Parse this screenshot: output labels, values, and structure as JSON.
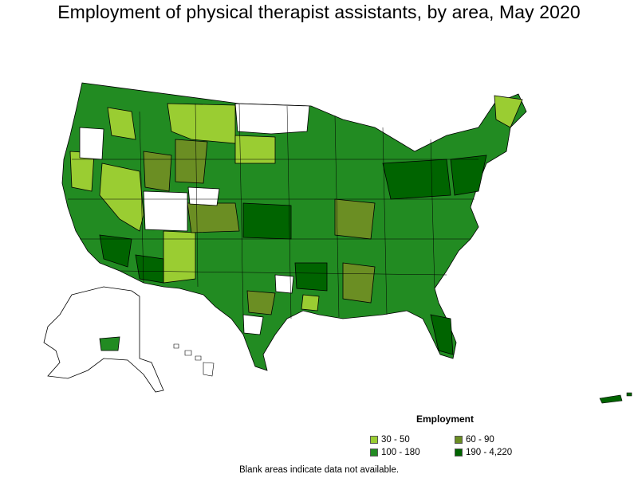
{
  "map": {
    "title": "Employment of physical therapist assistants, by area, May 2020",
    "note": "Blank areas indicate data not available."
  },
  "legend": {
    "title": "Employment",
    "items": [
      {
        "label": "30 - 50",
        "color": "#9acd32"
      },
      {
        "label": "60 - 90",
        "color": "#6b8e23"
      },
      {
        "label": "100 - 180",
        "color": "#228b22"
      },
      {
        "label": "190 - 4,220",
        "color": "#006400"
      }
    ]
  },
  "colors": {
    "no_data": "#ffffff",
    "border": "#000000"
  }
}
